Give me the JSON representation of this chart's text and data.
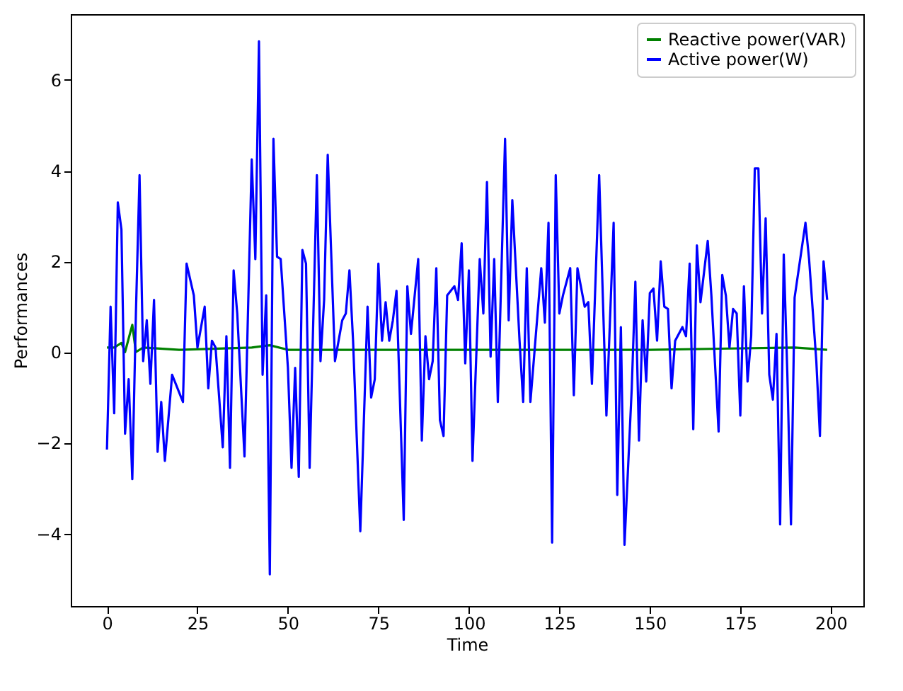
{
  "chart_data": {
    "type": "line",
    "xlabel": "Time",
    "ylabel": "Performances",
    "xlim": [
      -10,
      209
    ],
    "ylim": [
      -5.6,
      7.45
    ],
    "xticks": [
      0,
      25,
      50,
      75,
      100,
      125,
      150,
      175,
      200
    ],
    "yticks": [
      -4,
      -2,
      0,
      2,
      4,
      6
    ],
    "grid": false,
    "legend": "top right",
    "series": [
      {
        "name": "Reactive power(VAR)",
        "color": "#008000",
        "x": [
          0,
          2,
          4,
          5,
          7,
          8,
          10,
          20,
          40,
          45,
          50,
          100,
          150,
          190,
          199
        ],
        "values": [
          0.1,
          0.1,
          0.2,
          0.0,
          0.6,
          0.0,
          0.1,
          0.05,
          0.1,
          0.15,
          0.05,
          0.05,
          0.05,
          0.1,
          0.05
        ]
      },
      {
        "name": "Active power(W)",
        "color": "#0000ff",
        "x": [
          0,
          1,
          2,
          3,
          4,
          5,
          6,
          7,
          8,
          9,
          10,
          11,
          12,
          13,
          14,
          15,
          16,
          18,
          19,
          21,
          22,
          24,
          25,
          27,
          28,
          29,
          30,
          32,
          33,
          34,
          35,
          36,
          38,
          40,
          41,
          42,
          43,
          44,
          45,
          46,
          47,
          48,
          50,
          51,
          52,
          53,
          54,
          55,
          56,
          58,
          59,
          60,
          61,
          63,
          65,
          66,
          67,
          68,
          70,
          72,
          73,
          74,
          75,
          76,
          77,
          78,
          79,
          80,
          82,
          83,
          84,
          86,
          87,
          88,
          89,
          90,
          91,
          92,
          93,
          94,
          96,
          97,
          98,
          99,
          100,
          101,
          103,
          104,
          105,
          106,
          107,
          108,
          110,
          111,
          112,
          114,
          115,
          116,
          117,
          120,
          121,
          122,
          123,
          124,
          125,
          126,
          128,
          129,
          130,
          132,
          133,
          134,
          136,
          138,
          140,
          141,
          142,
          143,
          145,
          146,
          147,
          148,
          149,
          150,
          151,
          152,
          153,
          154,
          155,
          156,
          157,
          159,
          160,
          161,
          162,
          163,
          164,
          166,
          167,
          169,
          170,
          171,
          172,
          173,
          174,
          175,
          176,
          177,
          178,
          179,
          180,
          181,
          182,
          183,
          184,
          185,
          186,
          187,
          188,
          189,
          190,
          193,
          194,
          196,
          197,
          198,
          199
        ],
        "values": [
          -2.15,
          1.0,
          -1.35,
          3.3,
          2.7,
          -1.8,
          -0.6,
          -2.8,
          0.85,
          3.9,
          -0.2,
          0.7,
          -0.7,
          1.15,
          -2.2,
          -1.1,
          -2.4,
          -0.5,
          -0.7,
          -1.1,
          1.95,
          1.25,
          0.1,
          1.0,
          -0.8,
          0.25,
          0.1,
          -2.1,
          0.35,
          -2.55,
          1.8,
          0.85,
          -2.3,
          4.25,
          2.05,
          6.85,
          -0.5,
          1.25,
          -4.9,
          4.7,
          2.1,
          2.05,
          -0.35,
          -2.55,
          -0.35,
          -2.75,
          2.25,
          1.95,
          -2.55,
          3.9,
          -0.2,
          1.15,
          4.35,
          -0.2,
          0.7,
          0.85,
          1.8,
          0.25,
          -3.95,
          1.0,
          -1.0,
          -0.6,
          1.95,
          0.25,
          1.1,
          0.25,
          0.7,
          1.35,
          -3.7,
          1.45,
          0.4,
          2.05,
          -1.95,
          0.35,
          -0.6,
          -0.2,
          1.85,
          -1.5,
          -1.85,
          1.25,
          1.45,
          1.15,
          2.4,
          -0.25,
          1.8,
          -2.4,
          2.05,
          0.85,
          3.75,
          -0.1,
          2.05,
          -1.1,
          4.7,
          0.7,
          3.35,
          0.25,
          -1.1,
          1.85,
          -1.1,
          1.85,
          0.65,
          2.85,
          -4.2,
          3.9,
          0.85,
          1.25,
          1.85,
          -0.95,
          1.85,
          1.0,
          1.1,
          -0.7,
          3.9,
          -1.4,
          2.85,
          -3.15,
          0.55,
          -4.25,
          -0.8,
          1.55,
          -1.95,
          0.7,
          -0.65,
          1.3,
          1.4,
          0.25,
          2.0,
          1.0,
          0.95,
          -0.8,
          0.25,
          0.55,
          0.35,
          1.95,
          -1.7,
          2.35,
          1.1,
          2.45,
          1.25,
          -1.75,
          1.7,
          1.25,
          0.1,
          0.95,
          0.85,
          -1.4,
          1.45,
          -0.65,
          0.35,
          4.05,
          4.05,
          0.85,
          2.95,
          -0.5,
          -1.05,
          0.4,
          -3.8,
          2.15,
          -0.5,
          -3.8,
          1.2,
          2.85,
          2.05,
          -0.2,
          -1.85,
          2.0,
          1.15
        ]
      }
    ]
  }
}
